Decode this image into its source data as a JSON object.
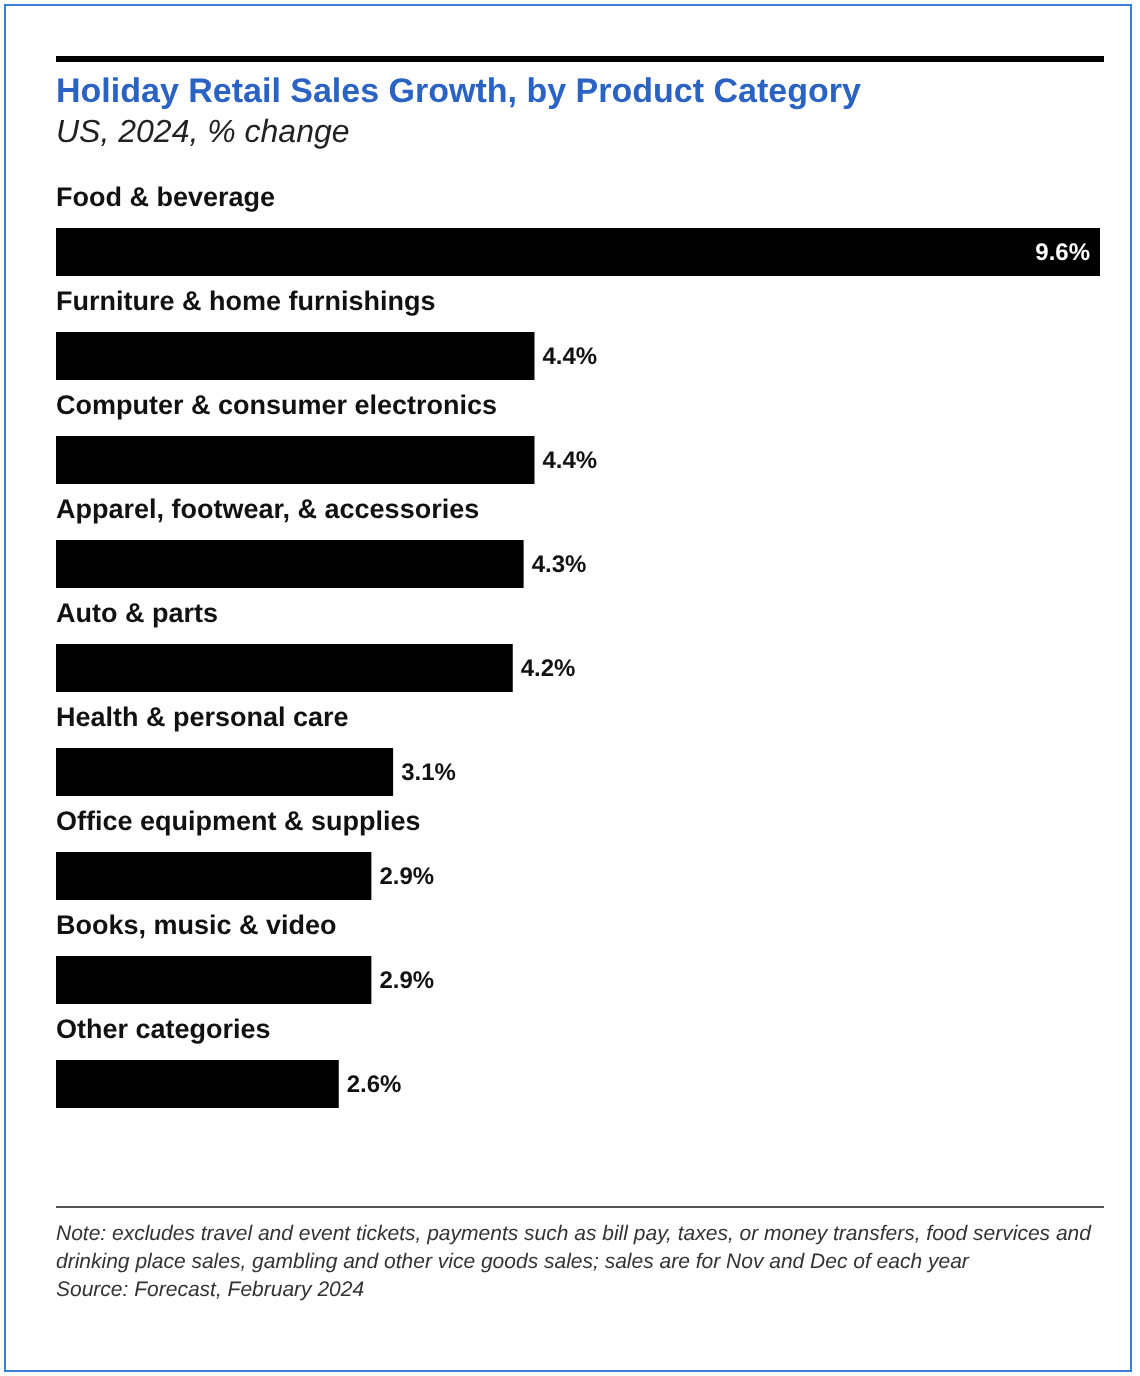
{
  "chart_data": {
    "type": "bar",
    "orientation": "horizontal",
    "title": "Holiday Retail Sales Growth, by Product Category",
    "subtitle": "US, 2024, % change",
    "categories": [
      "Food & beverage",
      "Furniture & home furnishings",
      "Computer & consumer electronics",
      "Apparel, footwear, & accessories",
      "Auto & parts",
      "Health & personal care",
      "Office equipment & supplies",
      "Books, music & video",
      "Other categories"
    ],
    "values": [
      9.6,
      4.4,
      4.4,
      4.3,
      4.2,
      3.1,
      2.9,
      2.9,
      2.6
    ],
    "value_labels": [
      "9.6%",
      "4.4%",
      "4.4%",
      "4.3%",
      "4.2%",
      "3.1%",
      "2.9%",
      "2.9%",
      "2.6%"
    ],
    "color": "#000000",
    "annotations": [
      "Note: excludes travel and event tickets, payments such as bill pay, taxes, or money transfers, food services and drinking place sales, gambling and other vice goods sales; sales are for Nov and Dec of each year",
      "Source: Forecast, February 2024"
    ]
  }
}
